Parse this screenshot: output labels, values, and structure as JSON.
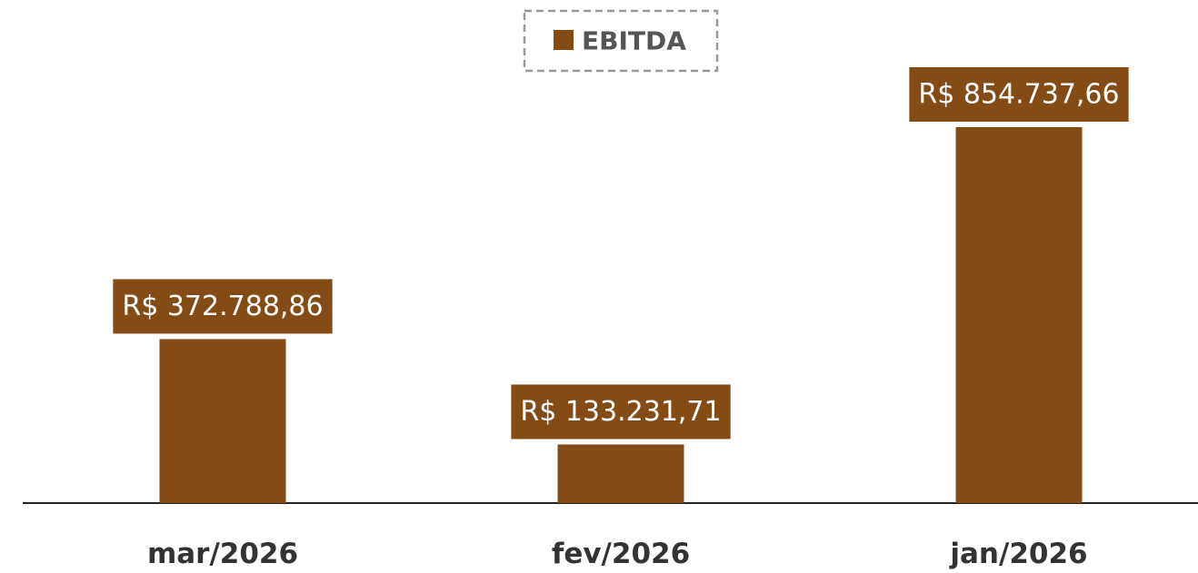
{
  "chart_data": {
    "type": "bar",
    "categories": [
      "mar/2026",
      "fev/2026",
      "jan/2026"
    ],
    "series": [
      {
        "name": "EBITDA",
        "color": "#844c14",
        "values": [
          372788.86,
          133231.71,
          854737.66
        ],
        "value_labels": [
          "R$ 372.788,86",
          "R$ 133.231,71",
          "R$ 854.737,66"
        ]
      }
    ]
  }
}
